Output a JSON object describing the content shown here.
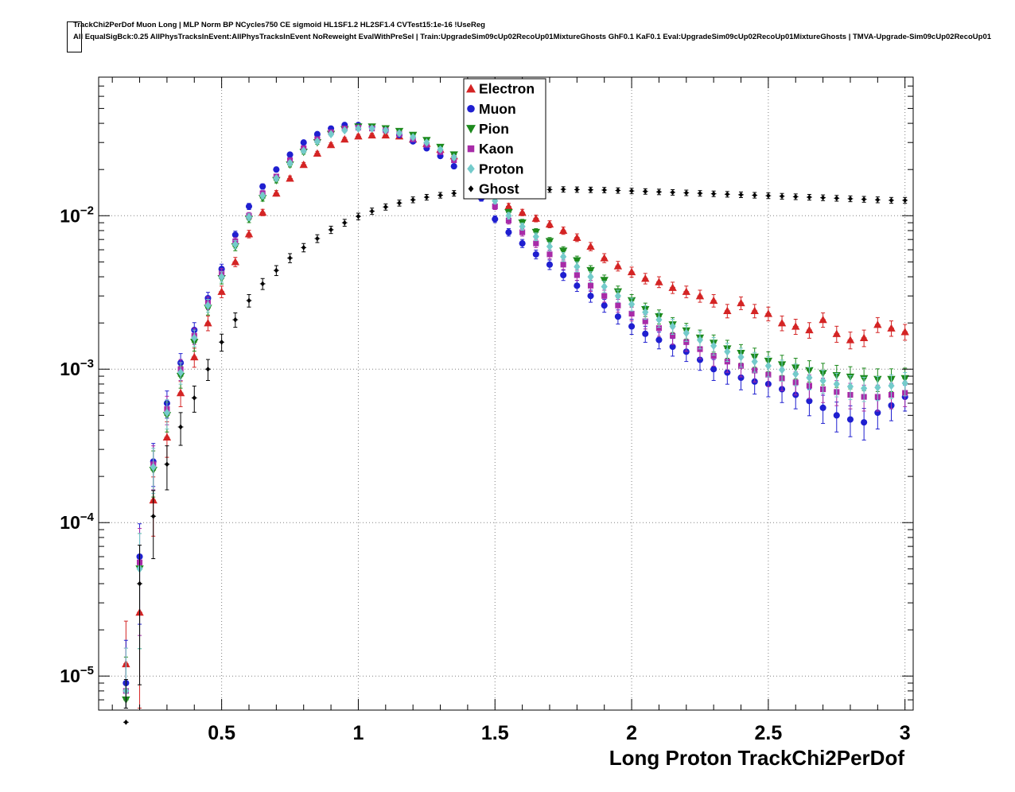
{
  "header": {
    "line1": "TrackChi2PerDof Muon Long | MLP Norm BP NCycles750 CE sigmoid HL1SF1.2 HL2SF1.4 CVTest15:1e-16 !UseReg",
    "line2": "All EqualSigBck:0.25 AllPhysTracksInEvent:AllPhysTracksInEvent NoReweight EvalWithPreSel | Train:UpgradeSim09cUp02RecoUp01MixtureGhosts GhF0.1 KaF0.1 Eval:UpgradeSim09cUp02RecoUp01MixtureGhosts | TMVA-Upgrade-Sim09cUp02RecoUp01"
  },
  "chart_data": {
    "type": "scatter",
    "title": "",
    "xlabel": "Long Proton TrackChi2PerDof",
    "ylabel": "",
    "xlim": [
      0.05,
      3.03
    ],
    "ylim": [
      6e-06,
      0.08
    ],
    "ylog": true,
    "grid": true,
    "legend_position": "top-center",
    "x_major_ticks": [
      0.5,
      1,
      1.5,
      2,
      2.5,
      3
    ],
    "x_tick_labels": [
      "0.5",
      "1",
      "1.5",
      "2",
      "2.5",
      "3"
    ],
    "x_minor_step": 0.1,
    "y_decades": [
      1e-05,
      0.0001,
      0.001,
      0.01
    ],
    "y_tick_exponents": [
      "−5",
      "−4",
      "−3",
      "−2"
    ],
    "x": [
      0.15,
      0.2,
      0.25,
      0.3,
      0.35,
      0.4,
      0.45,
      0.5,
      0.55,
      0.6,
      0.65,
      0.7,
      0.75,
      0.8,
      0.85,
      0.9,
      0.95,
      1.0,
      1.05,
      1.1,
      1.15,
      1.2,
      1.25,
      1.3,
      1.35,
      1.4,
      1.45,
      1.5,
      1.55,
      1.6,
      1.65,
      1.7,
      1.75,
      1.8,
      1.85,
      1.9,
      1.95,
      2.0,
      2.05,
      2.1,
      2.15,
      2.2,
      2.25,
      2.3,
      2.35,
      2.4,
      2.45,
      2.5,
      2.55,
      2.6,
      2.65,
      2.7,
      2.75,
      2.8,
      2.85,
      2.9,
      2.95,
      3.0
    ],
    "series": [
      {
        "name": "Electron",
        "color": "#d42424",
        "marker": "triangle-up",
        "values": [
          1.2e-05,
          2.6e-05,
          0.00014,
          0.00036,
          0.0007,
          0.0012,
          0.002,
          0.0032,
          0.005,
          0.0076,
          0.0105,
          0.014,
          0.0175,
          0.0215,
          0.0255,
          0.029,
          0.0315,
          0.033,
          0.0335,
          0.0335,
          0.033,
          0.0315,
          0.0295,
          0.027,
          0.0245,
          0.0215,
          0.017,
          0.0135,
          0.0115,
          0.0105,
          0.0096,
          0.0088,
          0.008,
          0.0072,
          0.0063,
          0.0053,
          0.0047,
          0.0043,
          0.0039,
          0.0037,
          0.0034,
          0.0032,
          0.003,
          0.0028,
          0.0024,
          0.0027,
          0.0024,
          0.0023,
          0.002,
          0.0019,
          0.0018,
          0.0021,
          0.0017,
          0.00155,
          0.0016,
          0.00195,
          0.00185,
          0.00175
        ]
      },
      {
        "name": "Muon",
        "color": "#1f1fd0",
        "marker": "circle",
        "values": [
          9e-06,
          6e-05,
          0.00025,
          0.0006,
          0.0011,
          0.0018,
          0.0029,
          0.0045,
          0.0075,
          0.0115,
          0.0155,
          0.02,
          0.025,
          0.03,
          0.034,
          0.037,
          0.039,
          0.039,
          0.038,
          0.036,
          0.0335,
          0.0305,
          0.0275,
          0.0245,
          0.021,
          0.0175,
          0.013,
          0.0095,
          0.0078,
          0.0066,
          0.0056,
          0.0048,
          0.0041,
          0.0035,
          0.003,
          0.0026,
          0.0022,
          0.0019,
          0.0017,
          0.00155,
          0.0014,
          0.0013,
          0.00115,
          0.001,
          0.00095,
          0.00088,
          0.00083,
          0.0008,
          0.00074,
          0.00068,
          0.00062,
          0.00056,
          0.0005,
          0.00047,
          0.00045,
          0.00052,
          0.00058,
          0.00066
        ]
      },
      {
        "name": "Pion",
        "color": "#1d8a1d",
        "marker": "triangle-down",
        "values": [
          7e-06,
          5e-05,
          0.00022,
          0.0005,
          0.0009,
          0.0015,
          0.0025,
          0.0039,
          0.0063,
          0.0095,
          0.013,
          0.017,
          0.0215,
          0.026,
          0.03,
          0.034,
          0.0365,
          0.038,
          0.038,
          0.037,
          0.0355,
          0.0335,
          0.031,
          0.028,
          0.025,
          0.022,
          0.0175,
          0.013,
          0.0105,
          0.009,
          0.0078,
          0.0068,
          0.0059,
          0.0051,
          0.0044,
          0.0038,
          0.0032,
          0.0028,
          0.00245,
          0.0022,
          0.00195,
          0.00178,
          0.0016,
          0.00148,
          0.00136,
          0.00127,
          0.0012,
          0.00113,
          0.00107,
          0.00102,
          0.00098,
          0.00094,
          0.00091,
          0.00089,
          0.00087,
          0.00086,
          0.00086,
          0.00087
        ]
      },
      {
        "name": "Kaon",
        "color": "#a82ba8",
        "marker": "square",
        "values": [
          8e-06,
          5.5e-05,
          0.00024,
          0.00055,
          0.001,
          0.00165,
          0.0027,
          0.0042,
          0.0068,
          0.01,
          0.014,
          0.018,
          0.023,
          0.0275,
          0.0315,
          0.035,
          0.037,
          0.0375,
          0.037,
          0.036,
          0.034,
          0.0315,
          0.029,
          0.026,
          0.023,
          0.0195,
          0.015,
          0.0115,
          0.0093,
          0.0078,
          0.0066,
          0.0056,
          0.0048,
          0.0041,
          0.0035,
          0.003,
          0.0026,
          0.0023,
          0.00205,
          0.00185,
          0.00165,
          0.0015,
          0.00135,
          0.00122,
          0.00112,
          0.00105,
          0.00098,
          0.00092,
          0.00087,
          0.00082,
          0.00078,
          0.00074,
          0.00071,
          0.00068,
          0.00066,
          0.00066,
          0.00068,
          0.0007
        ]
      },
      {
        "name": "Proton",
        "color": "#74cbcb",
        "marker": "diamond",
        "values": [
          8e-06,
          5e-05,
          0.00023,
          0.00052,
          0.00095,
          0.0016,
          0.0026,
          0.004,
          0.0065,
          0.0098,
          0.0135,
          0.0175,
          0.022,
          0.0265,
          0.0305,
          0.034,
          0.036,
          0.037,
          0.037,
          0.036,
          0.0345,
          0.0325,
          0.03,
          0.027,
          0.024,
          0.021,
          0.0165,
          0.0125,
          0.01,
          0.0085,
          0.0073,
          0.0063,
          0.0054,
          0.00465,
          0.004,
          0.00345,
          0.003,
          0.00265,
          0.00235,
          0.0021,
          0.0019,
          0.00172,
          0.00155,
          0.00142,
          0.0013,
          0.0012,
          0.00112,
          0.00105,
          0.00099,
          0.00093,
          0.00088,
          0.00084,
          0.0008,
          0.00077,
          0.00075,
          0.00076,
          0.00078,
          0.00081
        ]
      },
      {
        "name": "Ghost",
        "color": "#000000",
        "marker": "small-diamond",
        "values": [
          5e-06,
          4e-05,
          0.00011,
          0.00024,
          0.00042,
          0.00065,
          0.001,
          0.0015,
          0.0021,
          0.0028,
          0.0036,
          0.0044,
          0.0053,
          0.0062,
          0.0071,
          0.0081,
          0.009,
          0.0099,
          0.0107,
          0.0114,
          0.0121,
          0.0127,
          0.0132,
          0.0136,
          0.014,
          0.0143,
          0.0145,
          0.0146,
          0.0147,
          0.01475,
          0.0148,
          0.0148,
          0.01485,
          0.0148,
          0.01475,
          0.0147,
          0.0146,
          0.0145,
          0.0144,
          0.0143,
          0.0142,
          0.0141,
          0.014,
          0.0139,
          0.0138,
          0.0137,
          0.0136,
          0.0135,
          0.0134,
          0.0133,
          0.0132,
          0.0131,
          0.013,
          0.0129,
          0.0128,
          0.0127,
          0.0126,
          0.0126
        ]
      }
    ],
    "error_model": {
      "rel_coef": 0.025,
      "ref_value": 0.039,
      "max_rel": 0.9
    }
  }
}
